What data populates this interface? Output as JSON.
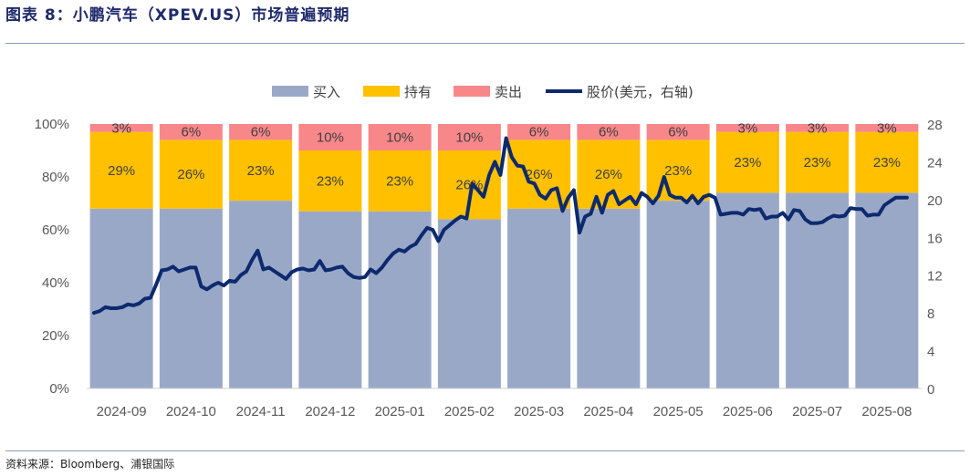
{
  "figure": {
    "title": "图表 8：小鹏汽车（XPEV.US）市场普遍预期",
    "source": "资料来源：Bloomberg、浦银国际"
  },
  "colors": {
    "buy": "#9aa8c8",
    "hold": "#ffc000",
    "sell": "#f8878a",
    "price": "#0d2a6e",
    "title": "#1f2a6b"
  },
  "chart_data": {
    "type": "bar",
    "stacked": true,
    "categories": [
      "2024-09",
      "2024-10",
      "2024-11",
      "2024-12",
      "2025-01",
      "2025-02",
      "2025-03",
      "2025-04",
      "2025-05",
      "2025-06",
      "2025-07",
      "2025-08"
    ],
    "series": [
      {
        "name": "买入",
        "values": [
          68,
          68,
          71,
          67,
          67,
          64,
          68,
          68,
          71,
          74,
          74,
          74
        ]
      },
      {
        "name": "持有",
        "values": [
          29,
          26,
          23,
          23,
          23,
          26,
          26,
          26,
          23,
          23,
          23,
          23
        ]
      },
      {
        "name": "卖出",
        "values": [
          3,
          6,
          6,
          10,
          10,
          10,
          6,
          6,
          6,
          3,
          3,
          3
        ]
      }
    ],
    "bar_labels": {
      "持有": [
        "29%",
        "26%",
        "23%",
        "23%",
        "23%",
        "26%",
        "26%",
        "26%",
        "23%",
        "23%",
        "23%",
        "23%"
      ],
      "卖出": [
        "3%",
        "6%",
        "6%",
        "10%",
        "10%",
        "10%",
        "6%",
        "6%",
        "6%",
        "3%",
        "3%",
        "3%"
      ]
    },
    "line": {
      "name": "股价(美元，右轴)",
      "axis": "right",
      "values": [
        8.0,
        8.2,
        8.6,
        8.5,
        8.5,
        8.6,
        8.9,
        8.8,
        9.0,
        9.5,
        9.6,
        11.0,
        12.5,
        12.6,
        12.9,
        12.4,
        12.6,
        12.8,
        12.8,
        10.8,
        10.5,
        10.9,
        11.2,
        10.9,
        11.4,
        11.3,
        12.0,
        12.4,
        13.6,
        14.6,
        12.6,
        12.8,
        12.4,
        12.0,
        11.6,
        12.3,
        12.6,
        12.7,
        12.5,
        12.6,
        13.5,
        12.5,
        12.6,
        12.8,
        12.9,
        12.2,
        11.8,
        11.7,
        11.8,
        12.6,
        12.2,
        12.8,
        13.6,
        14.3,
        14.7,
        14.5,
        15.0,
        15.3,
        16.2,
        17.0,
        16.8,
        15.6,
        16.8,
        17.3,
        17.8,
        18.2,
        18.0,
        21.7,
        21.0,
        20.3,
        22.6,
        24.0,
        22.6,
        26.5,
        24.5,
        23.6,
        23.5,
        21.9,
        21.7,
        20.5,
        20.1,
        21.0,
        21.2,
        18.8,
        20.2,
        21.0,
        16.5,
        18.2,
        18.5,
        20.3,
        18.6,
        20.5,
        20.9,
        19.5,
        19.9,
        20.3,
        19.5,
        20.7,
        20.3,
        19.6,
        20.4,
        22.4,
        20.5,
        20.2,
        20.2,
        19.7,
        20.4,
        19.6,
        20.3,
        20.5,
        20.2,
        18.4,
        18.5,
        18.6,
        18.6,
        18.4,
        19.0,
        18.9,
        19.0,
        18.0,
        18.2,
        18.2,
        18.6,
        17.9,
        18.9,
        18.8,
        17.9,
        17.5,
        17.5,
        17.6,
        18.0,
        18.3,
        18.2,
        18.3,
        19.1,
        19.0,
        19.0,
        18.3,
        18.4,
        18.4,
        19.4,
        19.8,
        20.2,
        20.2,
        20.2
      ]
    },
    "y_left": {
      "ticks": [
        "0%",
        "20%",
        "40%",
        "60%",
        "80%",
        "100%"
      ],
      "range": [
        0,
        100
      ]
    },
    "y_right": {
      "ticks": [
        "0",
        "4",
        "8",
        "12",
        "16",
        "20",
        "24",
        "28"
      ],
      "range": [
        0,
        28
      ]
    },
    "legend": {
      "position": "top-center",
      "entries": [
        "买入",
        "持有",
        "卖出",
        "股价(美元，右轴)"
      ]
    },
    "grid": false
  }
}
